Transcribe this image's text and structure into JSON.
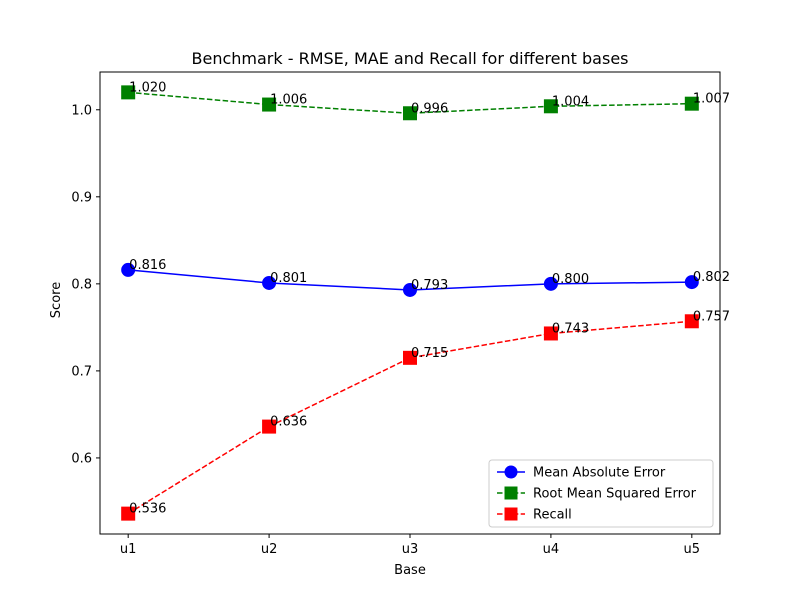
{
  "chart_data": {
    "type": "line",
    "title": "Benchmark - RMSE, MAE and Recall for different bases",
    "xlabel": "Base",
    "ylabel": "Score",
    "categories": [
      "u1",
      "u2",
      "u3",
      "u4",
      "u5"
    ],
    "ylim": [
      0.5126,
      1.0434
    ],
    "yticks": [
      0.6,
      0.7,
      0.8,
      0.9,
      1.0
    ],
    "ytick_labels": [
      "0.6",
      "0.7",
      "0.8",
      "0.9",
      "1.0"
    ],
    "grid": false,
    "legend_position": "lower-right",
    "series": [
      {
        "name": "Mean Absolute Error",
        "values": [
          0.816,
          0.801,
          0.793,
          0.8,
          0.802
        ],
        "labels": [
          "0.816",
          "0.801",
          "0.793",
          "0.800",
          "0.802"
        ],
        "color": "#0000ff",
        "marker": "circle",
        "linestyle": "solid"
      },
      {
        "name": "Root Mean Squared Error",
        "values": [
          1.02,
          1.006,
          0.996,
          1.004,
          1.007
        ],
        "labels": [
          "1.020",
          "1.006",
          "0.996",
          "1.004",
          "1.007"
        ],
        "color": "#008000",
        "marker": "square",
        "linestyle": "dashed"
      },
      {
        "name": "Recall",
        "values": [
          0.536,
          0.636,
          0.715,
          0.743,
          0.757
        ],
        "labels": [
          "0.536",
          "0.636",
          "0.715",
          "0.743",
          "0.757"
        ],
        "color": "#ff0000",
        "marker": "square",
        "linestyle": "dashed"
      }
    ]
  }
}
